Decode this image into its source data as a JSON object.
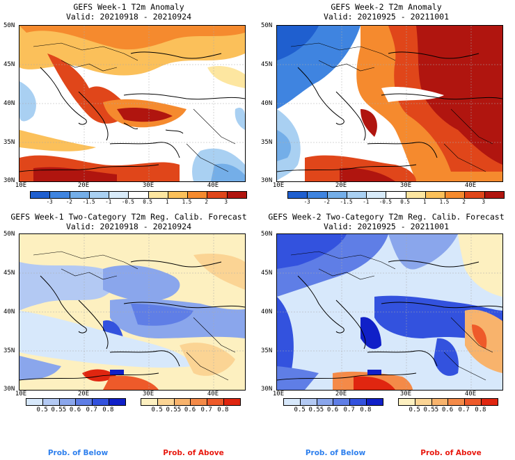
{
  "panels": [
    {
      "title": "GEFS Week-1 T2m Anomaly",
      "valid": "Valid: 20210918 - 20210924"
    },
    {
      "title": "GEFS Week-2 T2m Anomaly",
      "valid": "Valid: 20210925 - 20211001"
    },
    {
      "title": "GEFS Week-1 Two-Category T2m Reg. Calib. Forecast",
      "valid": "Valid: 20210918 - 20210924"
    },
    {
      "title": "GEFS Week-2 Two-Category T2m Reg. Calib. Forecast",
      "valid": "Valid: 20210925 - 20211001"
    }
  ],
  "lat_labels": [
    "50N",
    "45N",
    "40N",
    "35N",
    "30N"
  ],
  "lon_labels": [
    "10E",
    "20E",
    "30E",
    "40E"
  ],
  "anomaly_colorbar": {
    "labels": [
      "-3",
      "-2",
      "-1.5",
      "-1",
      "-0.5",
      "0.5",
      "1",
      "1.5",
      "2",
      "3"
    ],
    "colors": [
      "#1f5fcf",
      "#3f84e0",
      "#74aee8",
      "#a9d0f2",
      "#d8ebfa",
      "#ffffff",
      "#fde6a0",
      "#fbc05a",
      "#f58a2e",
      "#e0461a",
      "#b0150f"
    ]
  },
  "prob_below": {
    "labels": [
      "0.5",
      "0.55",
      "0.6",
      "0.7",
      "0.8"
    ],
    "colors": [
      "#d7e8fb",
      "#b3c9f3",
      "#8aa6ec",
      "#5f7ee6",
      "#3352de",
      "#1020c8"
    ]
  },
  "prob_above": {
    "labels": [
      "0.5",
      "0.55",
      "0.6",
      "0.7",
      "0.8"
    ],
    "colors": [
      "#fdf0c0",
      "#fbd494",
      "#f8b36c",
      "#f48a48",
      "#ee5a2a",
      "#e02610"
    ]
  },
  "footer": {
    "below_label": "Prob. of Below",
    "above_label": "Prob. of Above"
  },
  "footer_colors": {
    "below": "#2f80ed",
    "above": "#e8190f"
  }
}
